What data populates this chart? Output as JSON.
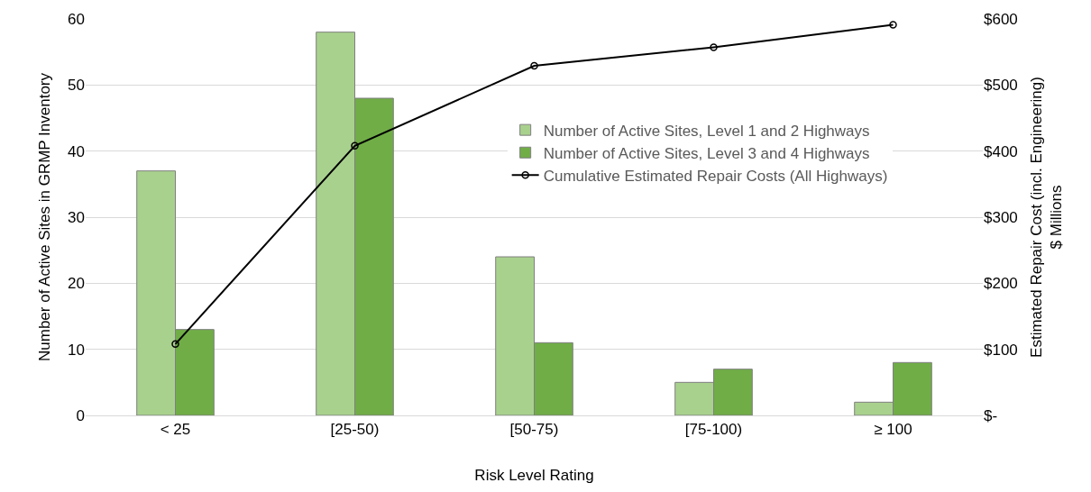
{
  "chart_data": {
    "type": "bar",
    "xlabel": "Risk Level Rating",
    "ylabel": "Number of Active Sites in GRMP Inventory",
    "y2label": "Estimated Repair Cost (incl. Engineering)\n$ Millions",
    "categories": [
      "< 25",
      "[25-50)",
      "[50-75)",
      "[75-100)",
      "≥ 100"
    ],
    "series": [
      {
        "name": "Number of Active Sites, Level 1 and 2 Highways",
        "color": "#a9d18e",
        "values": [
          37,
          58,
          24,
          5,
          2
        ]
      },
      {
        "name": "Number of Active Sites, Level 3 and 4 Highways",
        "color": "#70ad47",
        "values": [
          13,
          48,
          11,
          7,
          8
        ]
      },
      {
        "name": "Cumulative Estimated Repair Costs (All Highways)",
        "type": "line",
        "axis": "y2",
        "color": "#000000",
        "marker": "circle",
        "values": [
          108,
          408,
          529,
          557,
          591
        ]
      }
    ],
    "ylim": [
      0,
      60
    ],
    "yticks": [
      0,
      10,
      20,
      30,
      40,
      50,
      60
    ],
    "y2lim": [
      0,
      600
    ],
    "y2ticks": [
      {
        "value": 0,
        "label": "$-"
      },
      {
        "value": 100,
        "label": "$100"
      },
      {
        "value": 200,
        "label": "$200"
      },
      {
        "value": 300,
        "label": "$300"
      },
      {
        "value": 400,
        "label": "$400"
      },
      {
        "value": 500,
        "label": "$500"
      },
      {
        "value": 600,
        "label": "$600"
      }
    ],
    "grid": "y",
    "legend": "right"
  }
}
